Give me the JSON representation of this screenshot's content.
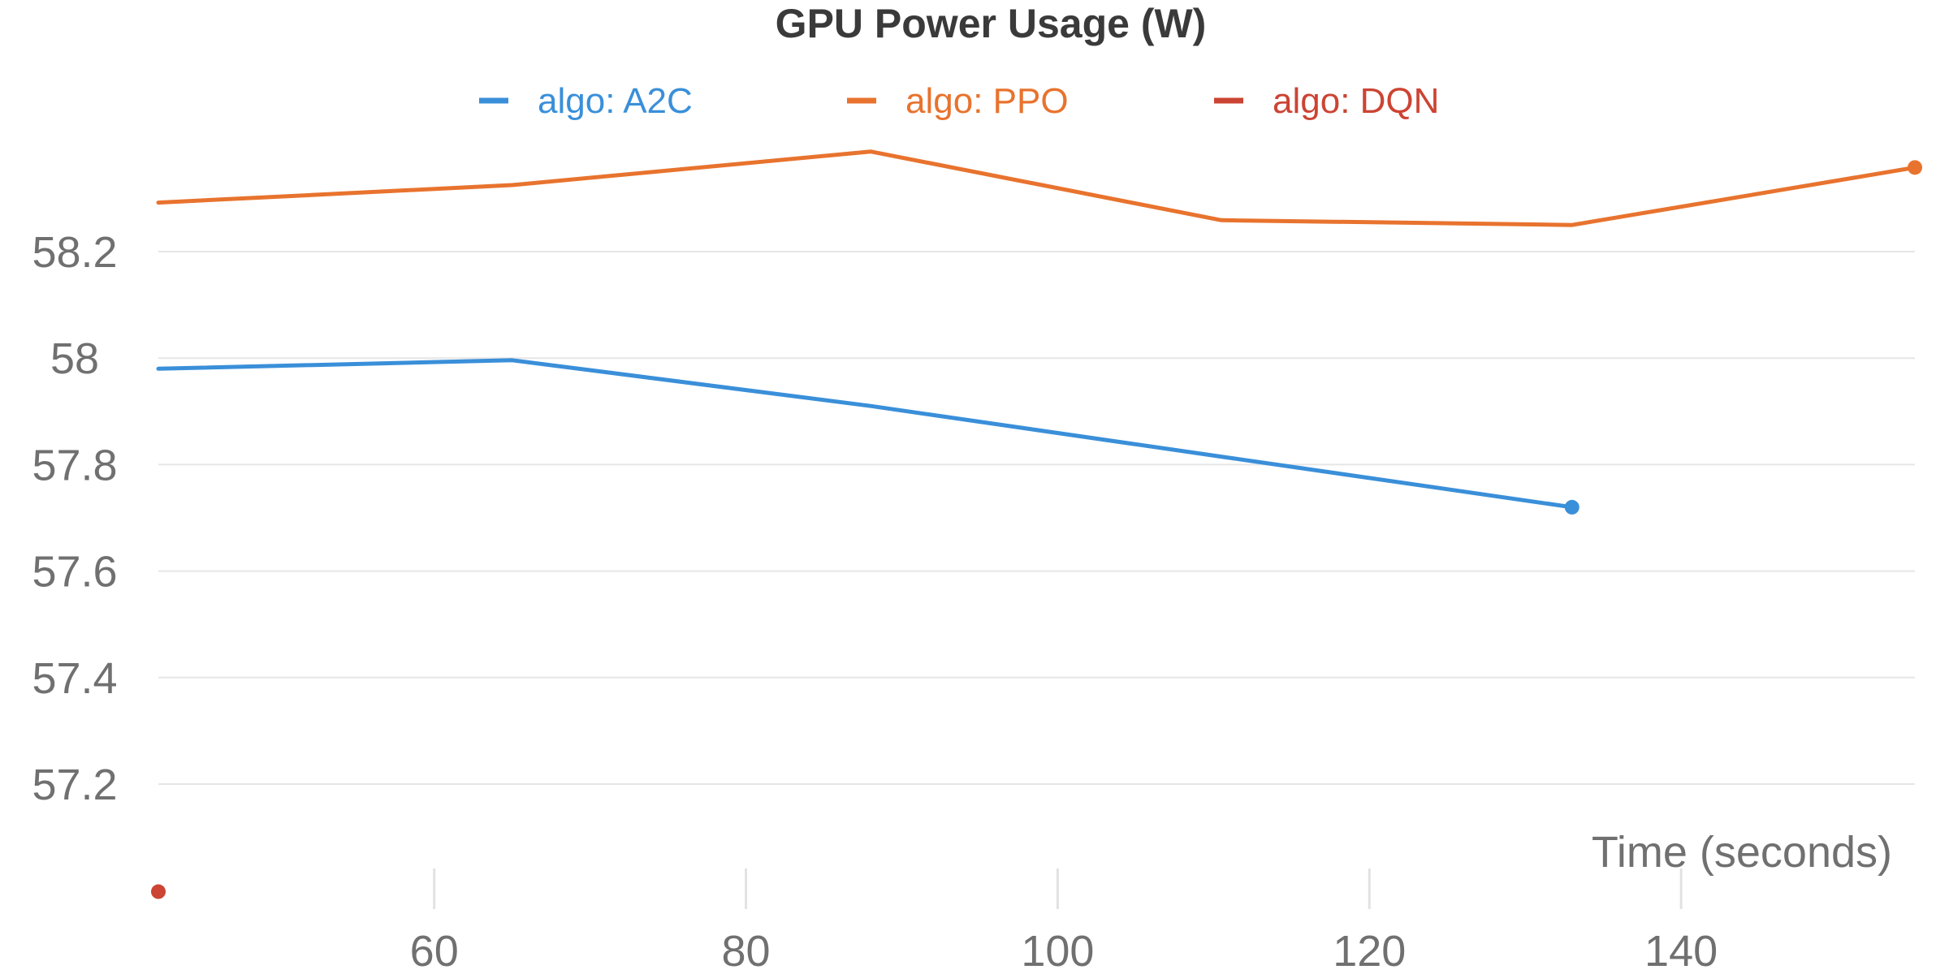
{
  "chart_data": {
    "type": "line",
    "title": "GPU Power Usage (W)",
    "xlabel": "Time (seconds)",
    "ylabel": "",
    "x_ticks": [
      60,
      80,
      100,
      120,
      140
    ],
    "y_ticks": [
      57.2,
      57.4,
      57.6,
      57.8,
      58,
      58.2
    ],
    "y_tick_labels": [
      "57.2",
      "57.4",
      "57.6",
      "57.8",
      "58",
      "58.2"
    ],
    "x_tick_labels": [
      "60",
      "80",
      "100",
      "120",
      "140"
    ],
    "xlim": [
      42.3,
      155
    ],
    "ylim": [
      57.0,
      58.4
    ],
    "grid": {
      "horizontal": true,
      "vertical": false
    },
    "legend_position": "top-center",
    "series": [
      {
        "name": "algo: A2C",
        "color": "#3a8fd9",
        "x": [
          42.3,
          65,
          88,
          110.5,
          133
        ],
        "y": [
          57.98,
          57.996,
          57.91,
          57.815,
          57.72
        ]
      },
      {
        "name": "algo: PPO",
        "color": "#e8732e",
        "x": [
          42.3,
          65,
          88,
          110.5,
          133,
          155
        ],
        "y": [
          58.292,
          58.325,
          58.388,
          58.259,
          58.25,
          58.358
        ]
      },
      {
        "name": "algo: DQN",
        "color": "#cc4433",
        "x": [
          42.3
        ],
        "y": [
          56.998
        ]
      }
    ]
  }
}
